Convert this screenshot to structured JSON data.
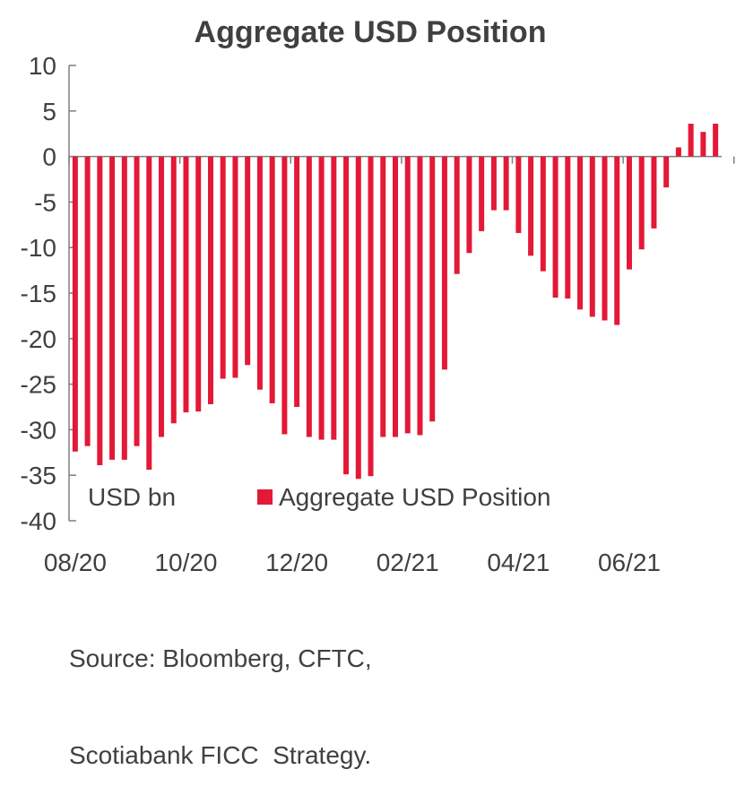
{
  "chart_data": {
    "type": "bar",
    "title": "Aggregate USD Position",
    "unit_label": "USD bn",
    "ylim": [
      -40,
      10
    ],
    "yticks": [
      10,
      5,
      0,
      -5,
      -10,
      -15,
      -20,
      -25,
      -30,
      -35,
      -40
    ],
    "xtick_labels": [
      "08/20",
      "10/20",
      "12/20",
      "02/21",
      "04/21",
      "06/21"
    ],
    "legend": "Aggregate USD Position",
    "legend_position": "bottom-center",
    "bar_color": "#E31937",
    "axis_color": "#7f7f7f",
    "series": [
      {
        "name": "Aggregate USD Position",
        "values": [
          -32.4,
          -31.8,
          -33.9,
          -33.3,
          -33.3,
          -31.8,
          -34.4,
          -30.8,
          -29.3,
          -28.1,
          -28.0,
          -27.2,
          -24.4,
          -24.3,
          -22.9,
          -25.6,
          -27.1,
          -30.5,
          -27.5,
          -30.8,
          -31.1,
          -31.1,
          -34.9,
          -35.4,
          -35.1,
          -30.8,
          -30.8,
          -30.4,
          -30.6,
          -29.1,
          -23.4,
          -12.9,
          -10.6,
          -8.2,
          -5.9,
          -5.9,
          -8.4,
          -10.9,
          -12.6,
          -15.5,
          -15.6,
          -16.8,
          -17.6,
          -18.0,
          -18.5,
          -12.4,
          -10.2,
          -7.9,
          -3.4,
          1.0,
          3.6,
          2.7,
          3.6
        ]
      }
    ]
  },
  "source": {
    "line1": "Source: Bloomberg, CFTC,",
    "line2": "Scotiabank FICC  Strategy."
  }
}
